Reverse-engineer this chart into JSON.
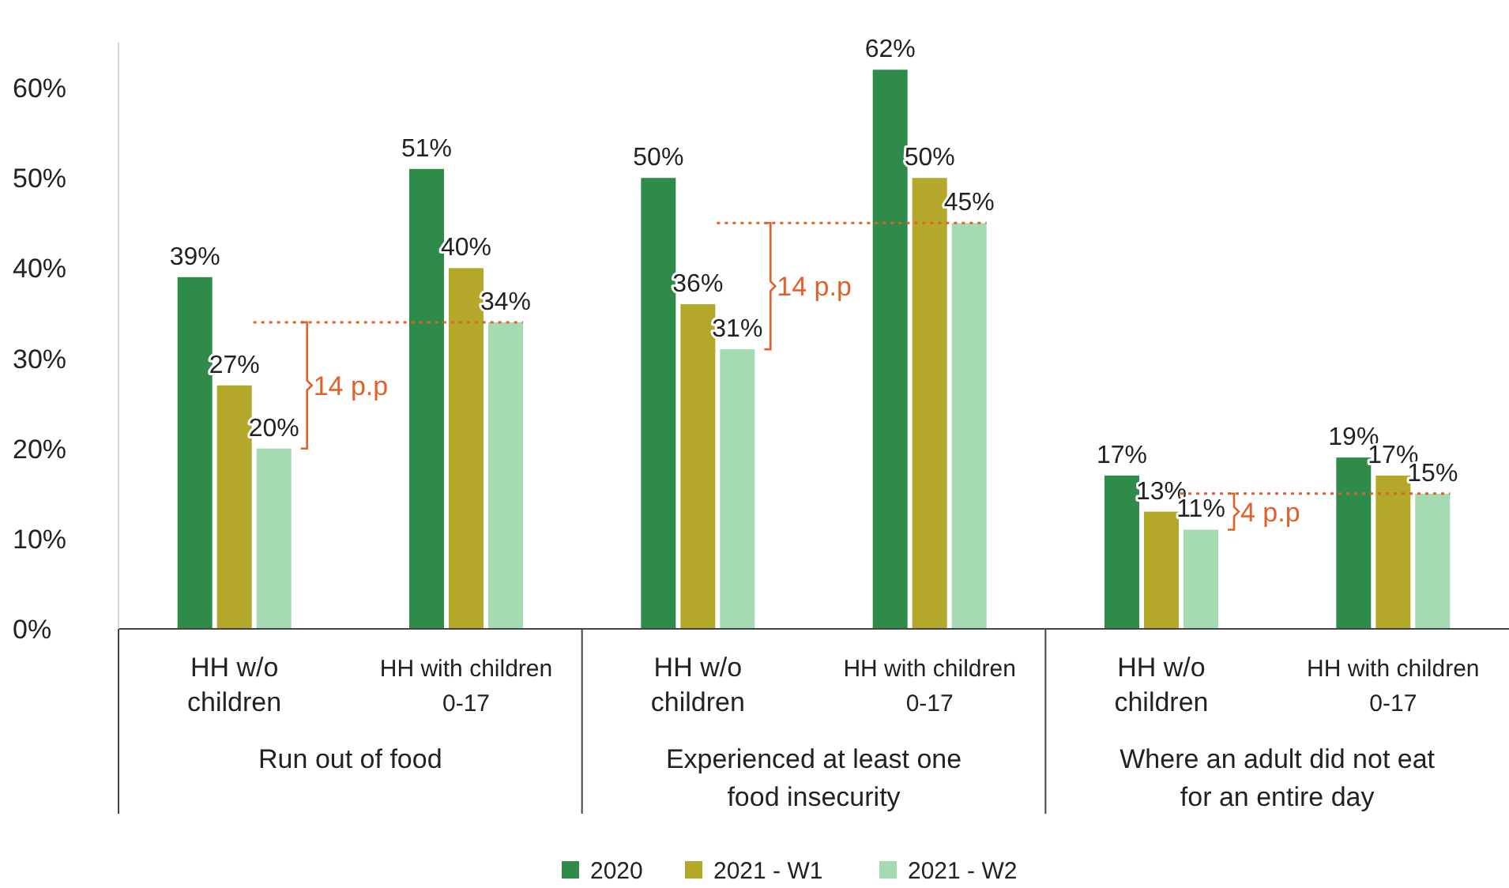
{
  "chart_data": {
    "type": "bar",
    "categories": [
      "HH w/o children",
      "HH with children 0-17",
      "HH w/o children",
      "HH with children 0-17",
      "HH w/o children",
      "HH with children 0-17"
    ],
    "series": [
      {
        "name": "2020",
        "color": "#2e8b4a",
        "values": [
          39,
          51,
          50,
          62,
          17,
          19
        ],
        "value_labels": [
          "39%",
          "51%",
          "50%",
          "62%",
          "17%",
          "19%"
        ]
      },
      {
        "name": "2021 - W1",
        "color": "#b3a829",
        "values": [
          27,
          40,
          36,
          50,
          13,
          17
        ],
        "value_labels": [
          "27%",
          "40%",
          "36%",
          "50%",
          "13%",
          "17%"
        ]
      },
      {
        "name": "2021 - W2",
        "color": "#a6dab2",
        "values": [
          20,
          34,
          31,
          45,
          11,
          15
        ],
        "value_labels": [
          "20%",
          "34%",
          "31%",
          "45%",
          "11%",
          "15%"
        ]
      }
    ],
    "ylim": [
      0,
      65
    ],
    "yticks": [
      {
        "value": 0,
        "label": "0%"
      },
      {
        "value": 10,
        "label": "10%"
      },
      {
        "value": 20,
        "label": "20%"
      },
      {
        "value": 30,
        "label": "30%"
      },
      {
        "value": 40,
        "label": "40%"
      },
      {
        "value": 50,
        "label": "50%"
      },
      {
        "value": 60,
        "label": "60%"
      }
    ],
    "annotations": [
      "Run out of food",
      "Experienced at least one food insecurity",
      "Where an adult did not eat for an entire day"
    ],
    "ref_lines": [
      {
        "axis": "y",
        "value": 34,
        "label": "14 p.p",
        "color": "#e0622b",
        "line_style": "dotted"
      },
      {
        "axis": "y",
        "value": 45,
        "label": "14 p.p",
        "color": "#e0622b",
        "line_style": "dotted"
      },
      {
        "axis": "y",
        "value": 15,
        "label": "4 p.p",
        "color": "#e0622b",
        "line_style": "dotted"
      }
    ],
    "legend": "bottom"
  }
}
